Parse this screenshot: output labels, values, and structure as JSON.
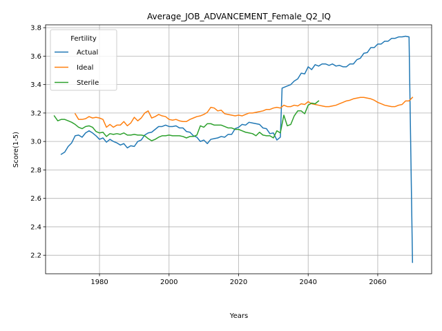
{
  "chart_data": {
    "type": "line",
    "title": "Average_JOB_ADVANCEMENT_Female_Q2_IQ",
    "xlabel": "Years",
    "ylabel": "Score(1-5)",
    "xlim": [
      1964.5,
      2075.5
    ],
    "ylim": [
      2.07,
      3.82
    ],
    "x_ticks": [
      1980,
      2000,
      2020,
      2040,
      2060
    ],
    "y_ticks": [
      2.2,
      2.4,
      2.6,
      2.8,
      3.0,
      3.2,
      3.4,
      3.6,
      3.8
    ],
    "grid": true,
    "legend": {
      "title": "Fertility",
      "position": "top-left"
    },
    "series": [
      {
        "name": "Actual",
        "color": "#1f77b4",
        "points": [
          [
            1969,
            2.91
          ],
          [
            1970,
            2.925
          ],
          [
            1971,
            2.965
          ],
          [
            1972,
            2.99
          ],
          [
            1973,
            3.04
          ],
          [
            1974,
            3.045
          ],
          [
            1975,
            3.03
          ],
          [
            1976,
            3.06
          ],
          [
            1977,
            3.075
          ],
          [
            1978,
            3.06
          ],
          [
            1979,
            3.04
          ],
          [
            1980,
            3.015
          ],
          [
            1981,
            3.025
          ],
          [
            1982,
            2.995
          ],
          [
            1983,
            3.015
          ],
          [
            1984,
            3.0
          ],
          [
            1985,
            2.99
          ],
          [
            1986,
            2.975
          ],
          [
            1987,
            2.985
          ],
          [
            1988,
            2.955
          ],
          [
            1989,
            2.97
          ],
          [
            1990,
            2.965
          ],
          [
            1991,
            3.0
          ],
          [
            1992,
            3.01
          ],
          [
            1993,
            3.045
          ],
          [
            1994,
            3.06
          ],
          [
            1995,
            3.065
          ],
          [
            1996,
            3.085
          ],
          [
            1997,
            3.105
          ],
          [
            1998,
            3.105
          ],
          [
            1999,
            3.115
          ],
          [
            2000,
            3.105
          ],
          [
            2001,
            3.105
          ],
          [
            2002,
            3.11
          ],
          [
            2003,
            3.095
          ],
          [
            2004,
            3.095
          ],
          [
            2005,
            3.07
          ],
          [
            2006,
            3.065
          ],
          [
            2007,
            3.04
          ],
          [
            2008,
            3.03
          ],
          [
            2009,
            3.0
          ],
          [
            2010,
            3.01
          ],
          [
            2011,
            2.985
          ],
          [
            2012,
            3.015
          ],
          [
            2013,
            3.02
          ],
          [
            2014,
            3.025
          ],
          [
            2015,
            3.035
          ],
          [
            2016,
            3.03
          ],
          [
            2017,
            3.05
          ],
          [
            2018,
            3.05
          ],
          [
            2019,
            3.09
          ],
          [
            2020,
            3.1
          ],
          [
            2021,
            3.12
          ],
          [
            2022,
            3.115
          ],
          [
            2023,
            3.135
          ],
          [
            2024,
            3.13
          ],
          [
            2025,
            3.125
          ],
          [
            2026,
            3.12
          ],
          [
            2027,
            3.095
          ],
          [
            2028,
            3.09
          ],
          [
            2029,
            3.055
          ],
          [
            2030,
            3.06
          ],
          [
            2031,
            3.01
          ],
          [
            2032,
            3.03
          ],
          [
            2032.5,
            3.375
          ],
          [
            2034,
            3.39
          ],
          [
            2035,
            3.4
          ],
          [
            2036,
            3.425
          ],
          [
            2037,
            3.44
          ],
          [
            2038,
            3.48
          ],
          [
            2039,
            3.475
          ],
          [
            2040,
            3.525
          ],
          [
            2041,
            3.505
          ],
          [
            2042,
            3.54
          ],
          [
            2043,
            3.53
          ],
          [
            2044,
            3.545
          ],
          [
            2045,
            3.545
          ],
          [
            2046,
            3.535
          ],
          [
            2047,
            3.545
          ],
          [
            2048,
            3.53
          ],
          [
            2049,
            3.535
          ],
          [
            2050,
            3.525
          ],
          [
            2051,
            3.525
          ],
          [
            2052,
            3.545
          ],
          [
            2053,
            3.545
          ],
          [
            2054,
            3.575
          ],
          [
            2055,
            3.585
          ],
          [
            2056,
            3.62
          ],
          [
            2057,
            3.625
          ],
          [
            2058,
            3.66
          ],
          [
            2059,
            3.66
          ],
          [
            2060,
            3.685
          ],
          [
            2061,
            3.685
          ],
          [
            2062,
            3.705
          ],
          [
            2063,
            3.705
          ],
          [
            2064,
            3.725
          ],
          [
            2065,
            3.725
          ],
          [
            2066,
            3.735
          ],
          [
            2067,
            3.735
          ],
          [
            2068,
            3.74
          ],
          [
            2069,
            3.735
          ],
          [
            2070,
            2.15
          ]
        ]
      },
      {
        "name": "Ideal",
        "color": "#ff7f0e",
        "points": [
          [
            1973,
            3.195
          ],
          [
            1974,
            3.155
          ],
          [
            1975,
            3.155
          ],
          [
            1976,
            3.16
          ],
          [
            1977,
            3.175
          ],
          [
            1978,
            3.165
          ],
          [
            1979,
            3.17
          ],
          [
            1980,
            3.165
          ],
          [
            1981,
            3.155
          ],
          [
            1982,
            3.1
          ],
          [
            1983,
            3.12
          ],
          [
            1984,
            3.1
          ],
          [
            1985,
            3.115
          ],
          [
            1986,
            3.115
          ],
          [
            1987,
            3.14
          ],
          [
            1988,
            3.11
          ],
          [
            1989,
            3.13
          ],
          [
            1990,
            3.17
          ],
          [
            1991,
            3.145
          ],
          [
            1992,
            3.165
          ],
          [
            1993,
            3.2
          ],
          [
            1994,
            3.215
          ],
          [
            1995,
            3.165
          ],
          [
            1996,
            3.175
          ],
          [
            1997,
            3.19
          ],
          [
            1998,
            3.18
          ],
          [
            1999,
            3.175
          ],
          [
            2000,
            3.155
          ],
          [
            2001,
            3.15
          ],
          [
            2002,
            3.155
          ],
          [
            2003,
            3.145
          ],
          [
            2004,
            3.14
          ],
          [
            2005,
            3.14
          ],
          [
            2006,
            3.155
          ],
          [
            2007,
            3.165
          ],
          [
            2008,
            3.175
          ],
          [
            2009,
            3.18
          ],
          [
            2010,
            3.19
          ],
          [
            2011,
            3.205
          ],
          [
            2012,
            3.24
          ],
          [
            2013,
            3.235
          ],
          [
            2014,
            3.215
          ],
          [
            2015,
            3.22
          ],
          [
            2016,
            3.195
          ],
          [
            2017,
            3.19
          ],
          [
            2018,
            3.185
          ],
          [
            2019,
            3.18
          ],
          [
            2020,
            3.185
          ],
          [
            2021,
            3.18
          ],
          [
            2022,
            3.19
          ],
          [
            2023,
            3.2
          ],
          [
            2024,
            3.2
          ],
          [
            2025,
            3.205
          ],
          [
            2026,
            3.21
          ],
          [
            2027,
            3.215
          ],
          [
            2028,
            3.225
          ],
          [
            2029,
            3.225
          ],
          [
            2030,
            3.235
          ],
          [
            2031,
            3.24
          ],
          [
            2032,
            3.235
          ],
          [
            2033,
            3.255
          ],
          [
            2034,
            3.245
          ],
          [
            2035,
            3.245
          ],
          [
            2036,
            3.255
          ],
          [
            2037,
            3.25
          ],
          [
            2038,
            3.265
          ],
          [
            2039,
            3.26
          ],
          [
            2040,
            3.28
          ],
          [
            2041,
            3.265
          ],
          [
            2042,
            3.26
          ],
          [
            2043,
            3.255
          ],
          [
            2044,
            3.25
          ],
          [
            2045,
            3.245
          ],
          [
            2046,
            3.245
          ],
          [
            2047,
            3.25
          ],
          [
            2048,
            3.255
          ],
          [
            2049,
            3.265
          ],
          [
            2050,
            3.275
          ],
          [
            2051,
            3.285
          ],
          [
            2052,
            3.29
          ],
          [
            2053,
            3.3
          ],
          [
            2054,
            3.305
          ],
          [
            2055,
            3.31
          ],
          [
            2056,
            3.31
          ],
          [
            2057,
            3.305
          ],
          [
            2058,
            3.3
          ],
          [
            2059,
            3.29
          ],
          [
            2060,
            3.275
          ],
          [
            2061,
            3.265
          ],
          [
            2062,
            3.255
          ],
          [
            2063,
            3.25
          ],
          [
            2064,
            3.245
          ],
          [
            2065,
            3.245
          ],
          [
            2066,
            3.255
          ],
          [
            2067,
            3.26
          ],
          [
            2068,
            3.285
          ],
          [
            2069,
            3.285
          ],
          [
            2070,
            3.31
          ]
        ]
      },
      {
        "name": "Sterile",
        "color": "#2ca02c",
        "points": [
          [
            1967,
            3.18
          ],
          [
            1968,
            3.145
          ],
          [
            1969,
            3.155
          ],
          [
            1970,
            3.155
          ],
          [
            1971,
            3.145
          ],
          [
            1972,
            3.135
          ],
          [
            1973,
            3.12
          ],
          [
            1974,
            3.1
          ],
          [
            1975,
            3.09
          ],
          [
            1976,
            3.105
          ],
          [
            1977,
            3.11
          ],
          [
            1978,
            3.1
          ],
          [
            1979,
            3.07
          ],
          [
            1980,
            3.06
          ],
          [
            1981,
            3.065
          ],
          [
            1982,
            3.035
          ],
          [
            1983,
            3.055
          ],
          [
            1984,
            3.05
          ],
          [
            1985,
            3.055
          ],
          [
            1986,
            3.05
          ],
          [
            1987,
            3.06
          ],
          [
            1988,
            3.045
          ],
          [
            1989,
            3.045
          ],
          [
            1990,
            3.05
          ],
          [
            1991,
            3.045
          ],
          [
            1992,
            3.045
          ],
          [
            1993,
            3.04
          ],
          [
            1994,
            3.02
          ],
          [
            1995,
            3.005
          ],
          [
            1996,
            3.015
          ],
          [
            1997,
            3.03
          ],
          [
            1998,
            3.04
          ],
          [
            1999,
            3.04
          ],
          [
            2000,
            3.045
          ],
          [
            2001,
            3.04
          ],
          [
            2002,
            3.04
          ],
          [
            2003,
            3.04
          ],
          [
            2004,
            3.035
          ],
          [
            2005,
            3.025
          ],
          [
            2006,
            3.035
          ],
          [
            2007,
            3.035
          ],
          [
            2008,
            3.045
          ],
          [
            2009,
            3.11
          ],
          [
            2010,
            3.1
          ],
          [
            2011,
            3.125
          ],
          [
            2012,
            3.125
          ],
          [
            2013,
            3.115
          ],
          [
            2014,
            3.115
          ],
          [
            2015,
            3.115
          ],
          [
            2016,
            3.105
          ],
          [
            2017,
            3.095
          ],
          [
            2018,
            3.095
          ],
          [
            2019,
            3.085
          ],
          [
            2020,
            3.085
          ],
          [
            2021,
            3.075
          ],
          [
            2022,
            3.065
          ],
          [
            2023,
            3.06
          ],
          [
            2024,
            3.055
          ],
          [
            2025,
            3.04
          ],
          [
            2026,
            3.065
          ],
          [
            2027,
            3.045
          ],
          [
            2028,
            3.04
          ],
          [
            2029,
            3.04
          ],
          [
            2030,
            3.025
          ],
          [
            2031,
            3.075
          ],
          [
            2032,
            3.06
          ],
          [
            2033,
            3.185
          ],
          [
            2034,
            3.11
          ],
          [
            2035,
            3.12
          ],
          [
            2036,
            3.18
          ],
          [
            2037,
            3.215
          ],
          [
            2038,
            3.215
          ],
          [
            2039,
            3.195
          ],
          [
            2040,
            3.255
          ],
          [
            2041,
            3.27
          ],
          [
            2042,
            3.265
          ],
          [
            2043,
            3.285
          ]
        ]
      }
    ]
  }
}
